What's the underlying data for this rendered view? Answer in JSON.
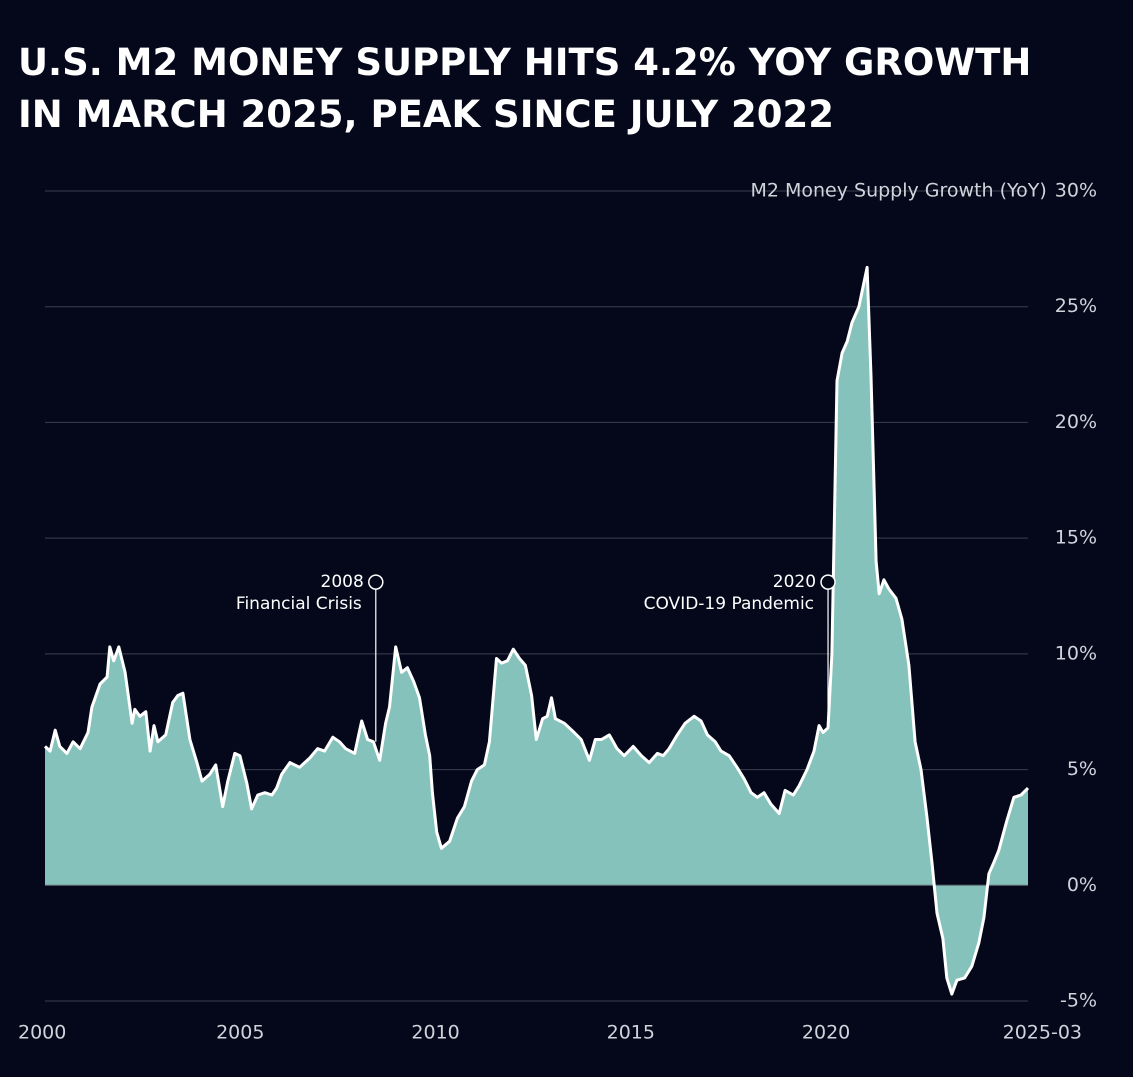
{
  "chart_data": {
    "type": "area",
    "title": [
      "U.S. M2 MONEY SUPPLY HITS 4.2% YOY GROWTH",
      "IN MARCH 2025, PEAK SINCE JULY 2022"
    ],
    "y_axis_label": "M2 Money Supply Growth (YoY)",
    "xlim": [
      2000,
      2025.17
    ],
    "xticks": [
      2000,
      2005,
      2010,
      2015,
      2020,
      {
        "value": 2025.17,
        "label": "2025-03"
      }
    ],
    "ylim": [
      -5,
      30
    ],
    "yticks": [
      {
        "value": -5,
        "label": "-5%"
      },
      {
        "value": 0,
        "label": "0%"
      },
      {
        "value": 5,
        "label": "5%"
      },
      {
        "value": 10,
        "label": "10%"
      },
      {
        "value": 15,
        "label": "15%"
      },
      {
        "value": 20,
        "label": "20%"
      },
      {
        "value": 25,
        "label": "25%"
      },
      {
        "value": 30,
        "label": "30%"
      }
    ],
    "grid": true,
    "color": "#86c2bc",
    "line_color": "#ffffff",
    "annotations": [
      {
        "year": "2008",
        "text": "Financial Crisis",
        "x": 2008.47,
        "y": 13.1
      },
      {
        "year": "2020",
        "text": "COVID-19 Pandemic",
        "x": 2020.05,
        "y": 13.1
      }
    ],
    "x": [
      2000.0,
      2000.13,
      2000.26,
      2000.38,
      2000.56,
      2000.72,
      2000.9,
      2001.1,
      2001.2,
      2001.41,
      2001.59,
      2001.66,
      2001.76,
      2001.89,
      2002.05,
      2002.23,
      2002.3,
      2002.43,
      2002.58,
      2002.69,
      2002.79,
      2002.89,
      2003.09,
      2003.27,
      2003.4,
      2003.53,
      2003.71,
      2003.89,
      2004.02,
      2004.22,
      2004.37,
      2004.55,
      2004.68,
      2004.86,
      2004.99,
      2005.17,
      2005.29,
      2005.45,
      2005.63,
      2005.81,
      2005.93,
      2006.06,
      2006.27,
      2006.52,
      2006.78,
      2006.98,
      2007.16,
      2007.37,
      2007.54,
      2007.7,
      2007.93,
      2008.11,
      2008.26,
      2008.41,
      2008.57,
      2008.72,
      2008.82,
      2008.98,
      2009.13,
      2009.28,
      2009.44,
      2009.59,
      2009.74,
      2009.85,
      2009.92,
      2010.03,
      2010.15,
      2010.36,
      2010.56,
      2010.74,
      2010.92,
      2011.07,
      2011.25,
      2011.38,
      2011.56,
      2011.69,
      2011.84,
      2011.99,
      2012.15,
      2012.3,
      2012.46,
      2012.58,
      2012.74,
      2012.86,
      2012.97,
      2013.07,
      2013.3,
      2013.55,
      2013.73,
      2013.94,
      2014.09,
      2014.25,
      2014.45,
      2014.65,
      2014.83,
      2015.06,
      2015.27,
      2015.47,
      2015.68,
      2015.83,
      2015.98,
      2016.19,
      2016.39,
      2016.62,
      2016.8,
      2016.96,
      2017.16,
      2017.31,
      2017.52,
      2017.72,
      2017.9,
      2018.08,
      2018.24,
      2018.41,
      2018.59,
      2018.8,
      2018.95,
      2019.16,
      2019.31,
      2019.51,
      2019.69,
      2019.82,
      2019.92,
      2020.05,
      2020.15,
      2020.28,
      2020.41,
      2020.54,
      2020.66,
      2020.84,
      2021.05,
      2021.15,
      2021.28,
      2021.36,
      2021.48,
      2021.61,
      2021.79,
      2021.94,
      2022.12,
      2022.28,
      2022.43,
      2022.58,
      2022.71,
      2022.84,
      2022.99,
      2023.09,
      2023.22,
      2023.35,
      2023.55,
      2023.73,
      2023.91,
      2024.04,
      2024.17,
      2024.3,
      2024.42,
      2024.63,
      2024.81,
      2024.99,
      2025.17
    ],
    "values": [
      6.0,
      5.8,
      6.7,
      6.0,
      5.7,
      6.2,
      5.9,
      6.6,
      7.7,
      8.7,
      9.0,
      10.3,
      9.7,
      10.3,
      9.2,
      7.0,
      7.6,
      7.3,
      7.5,
      5.8,
      6.9,
      6.2,
      6.5,
      7.9,
      8.2,
      8.3,
      6.3,
      5.3,
      4.5,
      4.8,
      5.2,
      3.4,
      4.5,
      5.7,
      5.6,
      4.4,
      3.3,
      3.9,
      4.0,
      3.9,
      4.2,
      4.8,
      5.3,
      5.1,
      5.5,
      5.9,
      5.8,
      6.4,
      6.2,
      5.9,
      5.7,
      7.1,
      6.3,
      6.2,
      5.4,
      7.0,
      7.7,
      10.3,
      9.2,
      9.4,
      8.8,
      8.1,
      6.5,
      5.6,
      4.0,
      2.3,
      1.6,
      1.9,
      2.9,
      3.4,
      4.5,
      5.0,
      5.2,
      6.2,
      9.8,
      9.6,
      9.7,
      10.2,
      9.8,
      9.5,
      8.2,
      6.3,
      7.2,
      7.3,
      8.1,
      7.2,
      7.0,
      6.6,
      6.3,
      5.4,
      6.3,
      6.3,
      6.5,
      5.9,
      5.6,
      6.0,
      5.6,
      5.3,
      5.7,
      5.6,
      5.9,
      6.5,
      7.0,
      7.3,
      7.1,
      6.5,
      6.2,
      5.8,
      5.6,
      5.1,
      4.6,
      4.0,
      3.8,
      4.0,
      3.5,
      3.1,
      4.1,
      3.9,
      4.3,
      5.0,
      5.8,
      6.9,
      6.6,
      6.8,
      10,
      21.8,
      23.0,
      23.5,
      24.3,
      25.0,
      26.7,
      22,
      14,
      12.6,
      13.2,
      12.8,
      12.4,
      11.5,
      9.5,
      6.2,
      5.0,
      3.0,
      1.0,
      -1.2,
      -2.3,
      -4.0,
      -4.7,
      -4.1,
      -4.0,
      -3.5,
      -2.5,
      -1.4,
      0.5,
      1.0,
      1.5,
      2.8,
      3.8,
      3.9,
      4.2
    ]
  }
}
